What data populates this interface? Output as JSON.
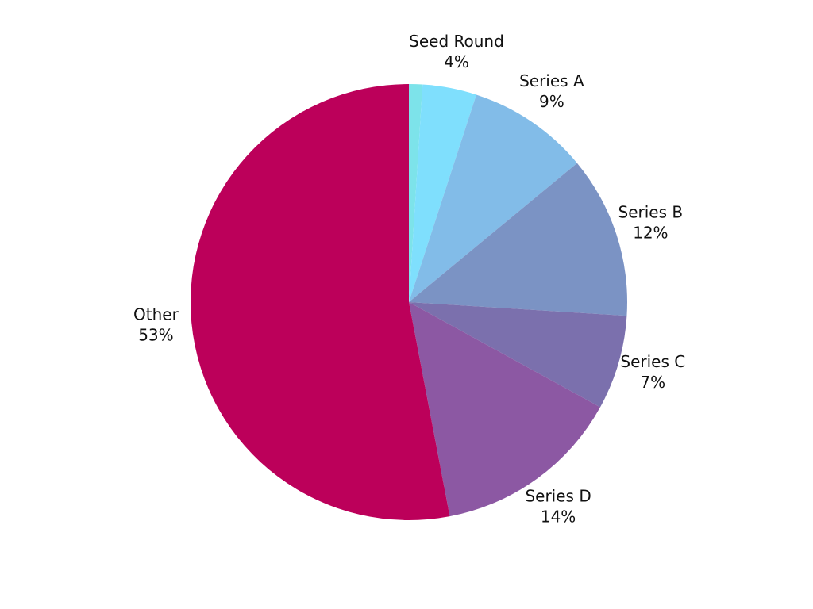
{
  "chart_data": {
    "type": "pie",
    "categories": [
      null,
      "Seed Round",
      "Series A",
      "Series B",
      "Series C",
      "Series D",
      "Other"
    ],
    "values": [
      1,
      4,
      9,
      12,
      7,
      14,
      53
    ],
    "value_labels": [
      null,
      "4%",
      "9%",
      "12%",
      "7%",
      "14%",
      "53%"
    ],
    "colors": [
      "#7de3ea",
      "#7fdffd",
      "#82bce8",
      "#7b93c4",
      "#7b70ad",
      "#8c58a3",
      "#bc005a"
    ]
  }
}
